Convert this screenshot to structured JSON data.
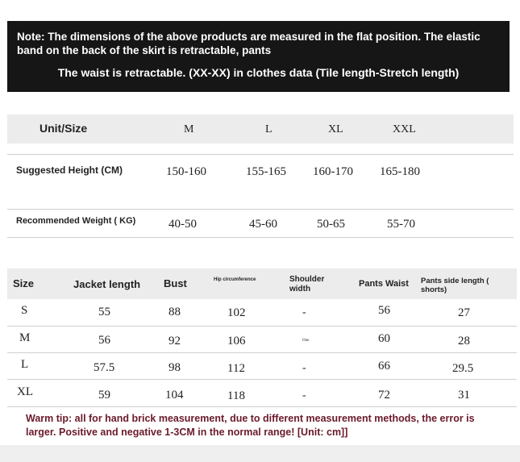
{
  "note": {
    "line1": "Note: The dimensions of the above products are measured in the flat position. The elastic band on the back of the skirt is retractable, pants",
    "line2": "The waist is retractable. (XX-XX) in clothes data (Tile length-Stretch length)"
  },
  "table1": {
    "header": [
      "Unit/Size",
      "M",
      "L",
      "XL",
      "XXL"
    ],
    "rows": [
      {
        "label": "Suggested Height (CM)",
        "values": [
          "150-160",
          "155-165",
          "160-170",
          "165-180"
        ]
      },
      {
        "label": "Recommended Weight ( KG)",
        "values": [
          "40-50",
          "45-60",
          "50-65",
          "55-70"
        ]
      }
    ]
  },
  "table2": {
    "header": [
      "Size",
      "Jacket length",
      "Bust",
      "Hip circumference",
      "Shoulder width",
      "Pants Waist",
      "Pants side length ( shorts)"
    ],
    "rows": [
      [
        "S",
        "55",
        "88",
        "102",
        "-",
        "56",
        "27"
      ],
      [
        "M",
        "56",
        "92",
        "106",
        "One",
        "60",
        "28"
      ],
      [
        "L",
        "57.5",
        "98",
        "112",
        "-",
        "66",
        "29.5"
      ],
      [
        "XL",
        "59",
        "104",
        "118",
        "-",
        "72",
        "31"
      ]
    ]
  },
  "warm_tip": "Warm tip: all for hand brick measurement, due to different measurement methods, the error is larger. Positive and negative 1-3CM in the normal range! [Unit: cm]]"
}
